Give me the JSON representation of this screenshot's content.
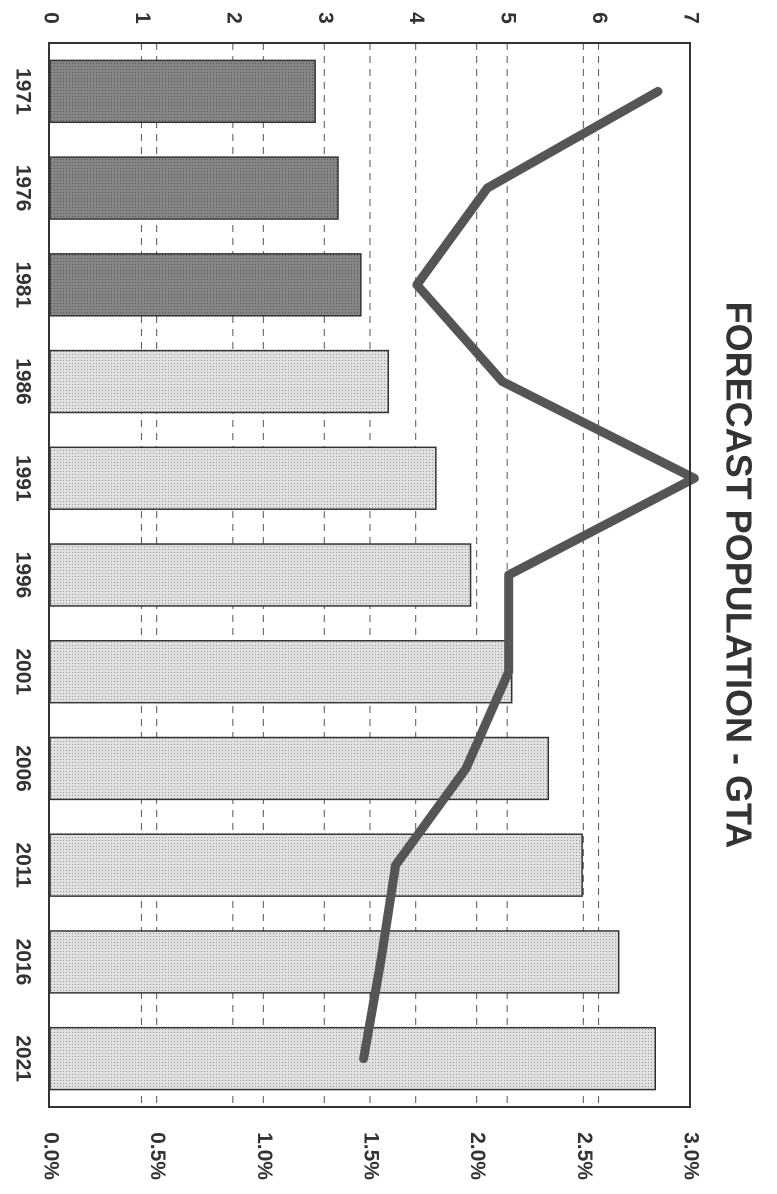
{
  "chart_data": {
    "type": "bar",
    "orientation": "rotated-90-clockwise",
    "title": "FORECAST POPULATION - GTA",
    "categories": [
      "1971",
      "1976",
      "1981",
      "1986",
      "1991",
      "1996",
      "2001",
      "2006",
      "2011",
      "2016",
      "2021"
    ],
    "series": [
      {
        "kind": "bar",
        "axis": "primary",
        "values": [
          2.9,
          3.15,
          3.4,
          3.7,
          4.22,
          4.6,
          5.05,
          5.45,
          5.82,
          6.22,
          6.62
        ],
        "fill_by_category": [
          "dark",
          "dark",
          "dark",
          "light",
          "light",
          "light",
          "light",
          "light",
          "light",
          "light",
          "light"
        ]
      },
      {
        "kind": "line",
        "axis": "secondary",
        "values": [
          2.85,
          2.05,
          1.72,
          2.12,
          3.02,
          2.15,
          2.15,
          1.95,
          1.62,
          1.55,
          1.47
        ]
      }
    ],
    "primary_axis": {
      "min": 0,
      "max": 7,
      "ticks": [
        "0",
        "1",
        "2",
        "3",
        "4",
        "5",
        "6",
        "7"
      ]
    },
    "secondary_axis": {
      "min": 0,
      "max": 3,
      "ticks": [
        "0.0%",
        "0.5%",
        "1.0%",
        "1.5%",
        "2.0%",
        "2.5%",
        "3.0%"
      ]
    },
    "grid": true,
    "colors": {
      "bar_dark": "#7a7a7a",
      "bar_light": "#d6d6d6",
      "line": "#555555",
      "border": "#333333",
      "grid": "#555555"
    }
  }
}
